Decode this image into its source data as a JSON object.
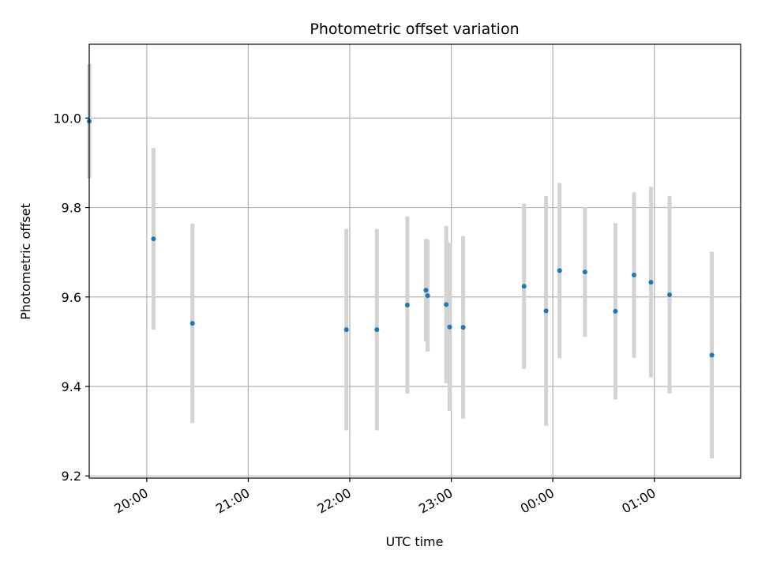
{
  "chart_data": {
    "type": "scatter",
    "title": "Photometric offset variation",
    "xlabel": "UTC time",
    "ylabel": "Photometric offset",
    "ylim": [
      9.195,
      10.165
    ],
    "xlim": [
      "19:26",
      "01:51"
    ],
    "yticks": [
      9.2,
      9.4,
      9.6,
      9.8,
      10.0
    ],
    "ytick_labels": [
      "9.2",
      "9.4",
      "9.6",
      "9.8",
      "10.0"
    ],
    "xticks": [
      "20:00",
      "21:00",
      "22:00",
      "23:00",
      "00:00",
      "01:00"
    ],
    "xtick_labels": [
      "20:00",
      "21:00",
      "22:00",
      "23:00",
      "00:00",
      "01:00"
    ],
    "grid": true,
    "point_color": "#1f77b4",
    "errorbar_color": "#d3d3d3",
    "points": [
      {
        "x": "19:26",
        "y": 9.993,
        "err": 0.128
      },
      {
        "x": "20:04",
        "y": 9.73,
        "err": 0.203
      },
      {
        "x": "20:27",
        "y": 9.541,
        "err": 0.223
      },
      {
        "x": "21:58",
        "y": 9.527,
        "err": 0.225
      },
      {
        "x": "22:16",
        "y": 9.527,
        "err": 0.225
      },
      {
        "x": "22:34",
        "y": 9.582,
        "err": 0.198
      },
      {
        "x": "22:45",
        "y": 9.615,
        "err": 0.115
      },
      {
        "x": "22:46",
        "y": 9.603,
        "err": 0.125
      },
      {
        "x": "22:57",
        "y": 9.583,
        "err": 0.176
      },
      {
        "x": "22:59",
        "y": 9.533,
        "err": 0.188
      },
      {
        "x": "23:07",
        "y": 9.532,
        "err": 0.204
      },
      {
        "x": "23:43",
        "y": 9.624,
        "err": 0.185
      },
      {
        "x": "23:56",
        "y": 9.569,
        "err": 0.257
      },
      {
        "x": "00:04",
        "y": 9.659,
        "err": 0.196
      },
      {
        "x": "00:19",
        "y": 9.656,
        "err": 0.145
      },
      {
        "x": "00:37",
        "y": 9.568,
        "err": 0.197
      },
      {
        "x": "00:48",
        "y": 9.649,
        "err": 0.185
      },
      {
        "x": "00:58",
        "y": 9.633,
        "err": 0.213
      },
      {
        "x": "01:09",
        "y": 9.605,
        "err": 0.221
      },
      {
        "x": "01:34",
        "y": 9.47,
        "err": 0.231
      }
    ]
  }
}
